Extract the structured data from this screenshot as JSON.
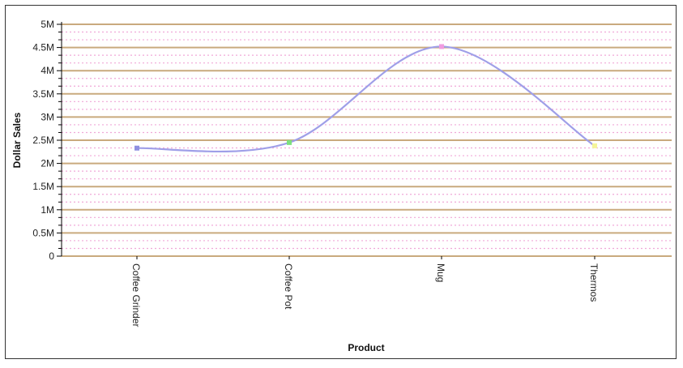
{
  "chart_data": {
    "type": "line",
    "title": "",
    "xlabel": "Product",
    "ylabel": "Dollar Sales",
    "categories": [
      "Coffee Grinder",
      "Coffee Pot",
      "Mug",
      "Thermos"
    ],
    "series": [
      {
        "values": [
          2330000,
          2450000,
          4520000,
          2380000
        ]
      }
    ],
    "ylim": [
      0,
      5000000
    ],
    "y_major_step": 500000,
    "y_minor_step": 166667,
    "y_tick_labels": [
      "0",
      "0.5M",
      "1M",
      "1.5M",
      "2M",
      "2.5M",
      "3M",
      "3.5M",
      "4M",
      "4.5M",
      "5M"
    ],
    "grid": true,
    "legend": "none",
    "smooth": true,
    "colors": {
      "line": "#9f9fe8",
      "major_grid": "#c9aa7e",
      "minor_grid": "#f0a8d8",
      "axis": "#000000",
      "markers": [
        "#8f8fe0",
        "#7ee07e",
        "#f09ce0",
        "#f5f59a"
      ]
    }
  }
}
